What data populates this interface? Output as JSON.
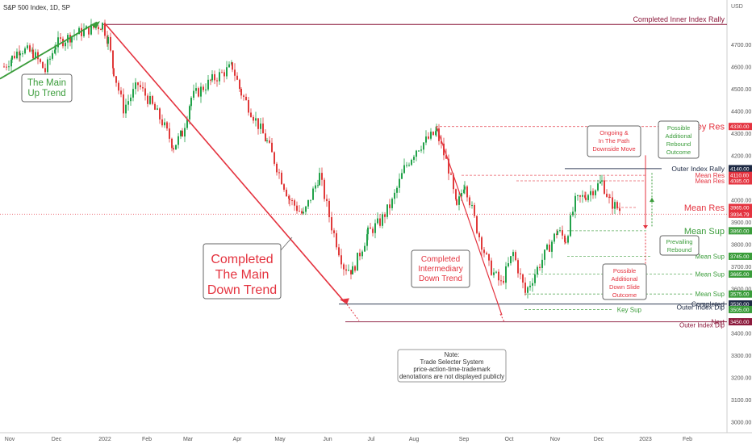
{
  "header": {
    "title": "S&P 500 Index, 1D, SP",
    "currency": "USD"
  },
  "colors": {
    "red": "#e4333f",
    "green": "#3a9c3a",
    "maroon": "#8c1a3c",
    "navy": "#1e2a44",
    "gray": "#666666",
    "up_candle": "#22a24a",
    "down_candle": "#e03a3a"
  },
  "chart_data": {
    "type": "candlestick",
    "title": "S&P 500 Index, 1D, SP",
    "ylim": [
      2950,
      4860
    ],
    "y_ticks": [
      "4700.00",
      "4600.00",
      "4500.00",
      "4400.00",
      "4300.00",
      "4200.00",
      "4100.00",
      "4000.00",
      "3900.00",
      "3800.00",
      "3700.00",
      "3600.00",
      "3500.00",
      "3400.00",
      "3300.00",
      "3200.00",
      "3100.00",
      "3000.00"
    ],
    "x_ticks": [
      "Nov",
      "Dec",
      "2022",
      "Feb",
      "Mar",
      "Apr",
      "May",
      "Jun",
      "Jul",
      "Aug",
      "Sep",
      "Oct",
      "Nov",
      "Dec",
      "2023",
      "Feb"
    ],
    "close_anchors": [
      [
        "Nov",
        4600
      ],
      [
        "Nov",
        4640
      ],
      [
        "Nov",
        4680
      ],
      [
        "Dec",
        4660
      ],
      [
        "Dec",
        4580
      ],
      [
        "Dec",
        4700
      ],
      [
        "Dec",
        4740
      ],
      [
        "2022",
        4790
      ],
      [
        "2022",
        4720
      ],
      [
        "2022",
        4580
      ],
      [
        "2022",
        4410
      ],
      [
        "Feb",
        4520
      ],
      [
        "Feb",
        4440
      ],
      [
        "Feb",
        4350
      ],
      [
        "Mar",
        4240
      ],
      [
        "Mar",
        4300
      ],
      [
        "Mar",
        4460
      ],
      [
        "Mar",
        4540
      ],
      [
        "Apr",
        4600
      ],
      [
        "Apr",
        4480
      ],
      [
        "Apr",
        4400
      ],
      [
        "May",
        4260
      ],
      [
        "May",
        4120
      ],
      [
        "May",
        4000
      ],
      [
        "May",
        3930
      ],
      [
        "Jun",
        4110
      ],
      [
        "Jun",
        3880
      ],
      [
        "Jun",
        3700
      ],
      [
        "Jun",
        3680
      ],
      [
        "Jul",
        3850
      ],
      [
        "Jul",
        3900
      ],
      [
        "Jul",
        3990
      ],
      [
        "Aug",
        4140
      ],
      [
        "Aug",
        4230
      ],
      [
        "Aug",
        4305
      ],
      [
        "Aug",
        4140
      ],
      [
        "Sep",
        3960
      ],
      [
        "Sep",
        4080
      ],
      [
        "Sep",
        3870
      ],
      [
        "Sep",
        3700
      ],
      [
        "Oct",
        3620
      ],
      [
        "Oct",
        3760
      ],
      [
        "Oct",
        3580
      ],
      [
        "Oct",
        3690
      ],
      [
        "Nov",
        3860
      ],
      [
        "Nov",
        3820
      ],
      [
        "Nov",
        3990
      ],
      [
        "Nov",
        4020
      ],
      [
        "Dec",
        4080
      ],
      [
        "Dec",
        3990
      ],
      [
        "Dec",
        3945
      ]
    ],
    "price_levels": [
      {
        "price": 4330,
        "label": "Key Res",
        "tag": "4330.00",
        "color": "red"
      },
      {
        "price": 4140,
        "label": "Outer Index Rally",
        "tag": "4140.00",
        "color": "navy"
      },
      {
        "price": 4110,
        "label": "Mean Res",
        "tag": "4110.00",
        "color": "red"
      },
      {
        "price": 4085,
        "label": "Mean Res",
        "tag": "4085.00",
        "color": "red"
      },
      {
        "price": 3965,
        "label": "Mean Res",
        "tag": "3965.00",
        "color": "red"
      },
      {
        "price": 3934.79,
        "label": "",
        "tag": "3934.79",
        "color": "red"
      },
      {
        "price": 3860,
        "label": "Mean Sup",
        "tag": "3860.00",
        "color": "green"
      },
      {
        "price": 3745,
        "label": "Mean Sup",
        "tag": "3745.00",
        "color": "green"
      },
      {
        "price": 3665,
        "label": "Mean Sup",
        "tag": "3665.00",
        "color": "green"
      },
      {
        "price": 3575,
        "label": "Mean Sup",
        "tag": "3575.00",
        "color": "green"
      },
      {
        "price": 3530,
        "label": "Completed",
        "tag": "3530.00",
        "color": "navy"
      },
      {
        "price": 3505,
        "label": "Key Sup",
        "tag": "3505.00",
        "color": "green"
      },
      {
        "price": 3450,
        "label": "Next",
        "tag": "3450.00",
        "color": "maroon"
      }
    ],
    "line_labels": {
      "completed_inner_rally": "Completed Inner Index Rally",
      "outer_index_dip_1": "Outer Index Dip",
      "outer_index_dip_2": "Outer Index Dip"
    },
    "annotations": {
      "main_up_trend": "The Main\nUp Trend",
      "main_down_trend": "Completed\nThe Main\nDown Trend",
      "intermediary_down_trend": "Completed\nIntermediary\nDown Trend",
      "ongoing_downside": "Ongoing &\nIn The Path\nDownside Move",
      "possible_rebound": "Possible\nAdditional\nRebound\nOutcome",
      "prevailing_rebound": "Prevailing\nRebound",
      "possible_down_slide": "Possible\nAdditional\nDown Slide\nOutcome",
      "note": "Note:\nTrade Selecter System\nprice-action-time-trademark\ndenotations are not displayed publicly"
    }
  }
}
